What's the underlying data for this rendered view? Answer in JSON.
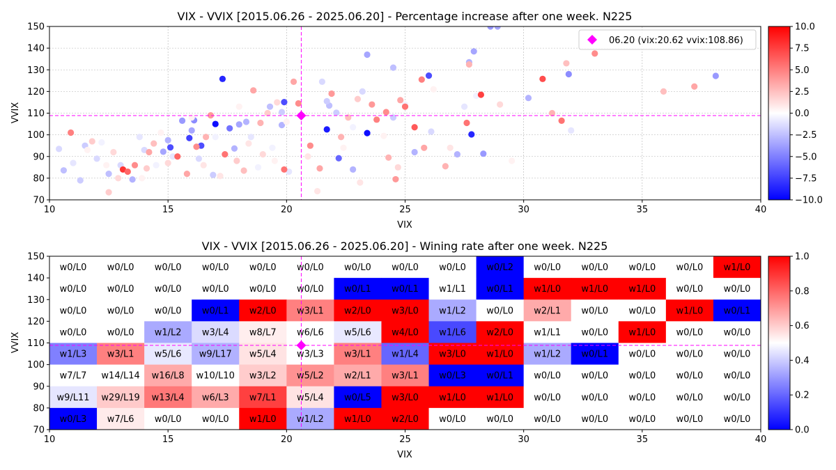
{
  "chart_data": [
    {
      "type": "scatter",
      "title": "VIX - VVIX [2015.06.26 - 2025.06.20]  - Percentage increase after one week. N225",
      "xlabel": "VIX",
      "ylabel": "VVIX",
      "xlim": [
        10,
        40
      ],
      "ylim": [
        70,
        150
      ],
      "x_ticks": [
        "10",
        "15",
        "20",
        "25",
        "30",
        "35",
        "40"
      ],
      "y_ticks": [
        "70",
        "80",
        "90",
        "100",
        "110",
        "120",
        "130",
        "140",
        "150"
      ],
      "grid": true,
      "legend": {
        "placement": "top-right",
        "label": "06.20 (vix:20.62 vvix:108.86)"
      },
      "marker": {
        "vix": 20.62,
        "vvix": 108.86,
        "color": "#ff00ff"
      },
      "colorbar": {
        "min": -10,
        "max": 10,
        "ticks": [
          "10.0",
          "7.5",
          "5.0",
          "2.5",
          "0.0",
          "−2.5",
          "−5.0",
          "−7.5",
          "−10.0"
        ],
        "colormap": "bwr"
      },
      "points": [
        [
          17.3,
          125.8,
          -8.5
        ],
        [
          23.4,
          100.8,
          -9.5
        ],
        [
          21.7,
          102.5,
          -9.0
        ],
        [
          17.0,
          105.0,
          -9.5
        ],
        [
          26.0,
          127.3,
          -7.0
        ],
        [
          27.8,
          100.2,
          -8.5
        ],
        [
          15.9,
          98.5,
          -7.5
        ],
        [
          16.4,
          95.0,
          -7.0
        ],
        [
          19.9,
          115.1,
          -7.0
        ],
        [
          15.1,
          94.2,
          -7.0
        ],
        [
          22.2,
          89.2,
          -6.0
        ],
        [
          17.6,
          103.0,
          -5.5
        ],
        [
          31.9,
          128.0,
          -4.5
        ],
        [
          38.1,
          127.2,
          -4.0
        ],
        [
          23.4,
          137.0,
          -3.5
        ],
        [
          28.9,
          150.0,
          -3.5
        ],
        [
          28.6,
          150.0,
          -4.0
        ],
        [
          28.3,
          91.3,
          -4.0
        ],
        [
          27.9,
          138.5,
          -3.5
        ],
        [
          27.7,
          133.5,
          -3.0
        ],
        [
          25.4,
          92.0,
          -3.0
        ],
        [
          15.6,
          106.5,
          -4.0
        ],
        [
          16.1,
          106.7,
          -4.5
        ],
        [
          19.8,
          104.5,
          -3.0
        ],
        [
          18.0,
          104.8,
          -3.5
        ],
        [
          18.3,
          106.0,
          -3.0
        ],
        [
          14.8,
          92.2,
          -3.5
        ],
        [
          15.0,
          97.5,
          -3.0
        ],
        [
          16.0,
          102.0,
          -3.5
        ],
        [
          17.8,
          93.7,
          -3.0
        ],
        [
          13.5,
          79.4,
          -3.0
        ],
        [
          12.5,
          82.0,
          -2.5
        ],
        [
          10.6,
          83.6,
          -2.5
        ],
        [
          30.2,
          117.0,
          -3.0
        ],
        [
          24.5,
          131.0,
          -2.5
        ],
        [
          27.2,
          91.0,
          -3.0
        ],
        [
          22.8,
          84.0,
          -3.0
        ],
        [
          19.3,
          113.0,
          -2.5
        ],
        [
          21.8,
          113.5,
          -2.5
        ],
        [
          22.1,
          110.2,
          -2.0
        ],
        [
          24.5,
          108.0,
          -2.0
        ],
        [
          21.7,
          115.5,
          -2.0
        ],
        [
          19.8,
          110.5,
          -2.0
        ],
        [
          16.9,
          81.5,
          -2.0
        ],
        [
          11.3,
          79.0,
          -2.0
        ],
        [
          11.5,
          95.0,
          -2.0
        ],
        [
          12.0,
          89.0,
          -1.5
        ],
        [
          13.0,
          86.0,
          -1.5
        ],
        [
          14.0,
          93.0,
          -1.5
        ],
        [
          16.3,
          89.0,
          -1.5
        ],
        [
          10.4,
          93.5,
          -1.5
        ],
        [
          11.0,
          87.0,
          -1.0
        ],
        [
          13.8,
          99.0,
          -1.0
        ],
        [
          15.2,
          90.0,
          -1.0
        ],
        [
          18.5,
          99.0,
          -1.0
        ],
        [
          20.1,
          83.0,
          -1.0
        ],
        [
          21.5,
          124.5,
          -1.5
        ],
        [
          23.2,
          120.0,
          -1.5
        ],
        [
          26.1,
          101.5,
          -1.5
        ],
        [
          27.5,
          113.0,
          -1.0
        ],
        [
          32.0,
          102.0,
          -1.0
        ],
        [
          28.0,
          118.0,
          -0.5
        ],
        [
          25.0,
          114.0,
          -0.5
        ],
        [
          12.2,
          96.5,
          -0.5
        ],
        [
          14.5,
          86.0,
          -0.5
        ],
        [
          17.0,
          99.0,
          -0.5
        ],
        [
          18.8,
          85.0,
          -0.5
        ],
        [
          19.4,
          94.0,
          -0.5
        ],
        [
          22.8,
          103.5,
          -0.5
        ],
        [
          29.5,
          88.0,
          0.5
        ],
        [
          10.9,
          101.0,
          5.0
        ],
        [
          11.8,
          97.0,
          2.0
        ],
        [
          12.7,
          92.0,
          1.5
        ],
        [
          13.1,
          84.0,
          8.0
        ],
        [
          13.3,
          83.0,
          6.0
        ],
        [
          13.6,
          86.0,
          4.5
        ],
        [
          14.2,
          92.0,
          3.5
        ],
        [
          14.4,
          96.0,
          2.5
        ],
        [
          15.4,
          90.0,
          6.0
        ],
        [
          15.8,
          82.0,
          3.5
        ],
        [
          16.2,
          94.5,
          4.5
        ],
        [
          16.6,
          99.0,
          3.0
        ],
        [
          16.8,
          109.0,
          4.0
        ],
        [
          17.4,
          91.0,
          5.5
        ],
        [
          17.9,
          88.0,
          2.0
        ],
        [
          18.2,
          83.5,
          2.5
        ],
        [
          18.6,
          120.5,
          3.5
        ],
        [
          18.9,
          105.5,
          3.0
        ],
        [
          19.2,
          110.0,
          2.0
        ],
        [
          19.6,
          115.0,
          1.5
        ],
        [
          19.9,
          84.0,
          5.5
        ],
        [
          20.3,
          124.5,
          3.5
        ],
        [
          20.5,
          114.5,
          4.5
        ],
        [
          21.0,
          95.0,
          4.5
        ],
        [
          21.4,
          84.5,
          3.5
        ],
        [
          21.9,
          119.0,
          4.0
        ],
        [
          22.3,
          99.0,
          3.0
        ],
        [
          22.6,
          108.0,
          2.5
        ],
        [
          23.0,
          116.5,
          2.0
        ],
        [
          23.6,
          114.0,
          4.0
        ],
        [
          23.8,
          107.0,
          5.0
        ],
        [
          24.2,
          110.5,
          4.5
        ],
        [
          24.3,
          89.5,
          3.0
        ],
        [
          24.6,
          79.5,
          4.0
        ],
        [
          24.8,
          116.0,
          3.5
        ],
        [
          25.0,
          113.0,
          5.5
        ],
        [
          25.4,
          103.5,
          6.5
        ],
        [
          25.7,
          125.5,
          5.0
        ],
        [
          25.8,
          94.0,
          3.5
        ],
        [
          26.7,
          85.5,
          3.0
        ],
        [
          27.6,
          105.5,
          5.5
        ],
        [
          28.2,
          118.5,
          7.5
        ],
        [
          30.8,
          125.8,
          7.0
        ],
        [
          31.2,
          110.0,
          3.0
        ],
        [
          31.6,
          106.5,
          5.5
        ],
        [
          33.0,
          137.5,
          4.5
        ],
        [
          37.2,
          122.3,
          3.5
        ],
        [
          35.9,
          120.0,
          2.5
        ],
        [
          31.8,
          133.0,
          2.5
        ],
        [
          27.7,
          132.5,
          3.0
        ],
        [
          12.5,
          73.5,
          2.0
        ],
        [
          12.9,
          80.0,
          1.5
        ],
        [
          14.1,
          84.5,
          2.0
        ],
        [
          15.0,
          87.0,
          1.5
        ],
        [
          16.5,
          86.0,
          1.0
        ],
        [
          17.2,
          81.0,
          1.0
        ],
        [
          18.4,
          96.0,
          1.0
        ],
        [
          19.0,
          91.0,
          1.5
        ],
        [
          20.9,
          90.0,
          1.0
        ],
        [
          21.3,
          74.0,
          1.0
        ],
        [
          23.1,
          78.0,
          1.0
        ],
        [
          24.7,
          85.0,
          1.5
        ],
        [
          26.9,
          94.0,
          1.0
        ],
        [
          29.0,
          114.0,
          1.5
        ],
        [
          11.6,
          93.0,
          0.5
        ],
        [
          12.4,
          86.0,
          0.5
        ],
        [
          14.7,
          101.0,
          0.5
        ],
        [
          16.0,
          108.0,
          0.5
        ],
        [
          18.0,
          113.0,
          0.5
        ],
        [
          20.0,
          106.0,
          0.5
        ],
        [
          22.4,
          94.0,
          0.5
        ],
        [
          24.1,
          99.5,
          0.5
        ],
        [
          26.2,
          121.0,
          0.5
        ],
        [
          13.9,
          80.0,
          0.5
        ],
        [
          19.5,
          88.0,
          0.5
        ]
      ]
    },
    {
      "type": "heatmap",
      "title": "VIX - VVIX [2015.06.26 - 2025.06.20]  - Wining rate after one week. N225",
      "xlabel": "VIX",
      "ylabel": "VVIX",
      "xlim": [
        10,
        40
      ],
      "ylim": [
        70,
        150
      ],
      "x_ticks": [
        "10",
        "15",
        "20",
        "25",
        "30",
        "35",
        "40"
      ],
      "y_ticks": [
        "70",
        "80",
        "90",
        "100",
        "110",
        "120",
        "130",
        "140",
        "150"
      ],
      "x_bins": [
        10,
        12,
        14,
        16,
        18,
        20,
        22,
        24,
        26,
        28,
        30,
        32,
        34,
        36,
        38,
        40
      ],
      "y_bins": [
        70,
        80,
        90,
        100,
        110,
        120,
        130,
        140,
        150
      ],
      "marker": {
        "vix": 20.62,
        "vvix": 108.86,
        "color": "#ff00ff"
      },
      "colorbar": {
        "min": 0,
        "max": 1,
        "ticks": [
          "1.0",
          "0.8",
          "0.6",
          "0.4",
          "0.2",
          "0.0"
        ],
        "colormap": "bwr"
      },
      "rows_top_to_bottom": [
        [
          "w0/L0",
          "w0/L0",
          "w0/L0",
          "w0/L0",
          "w0/L0",
          "w0/L0",
          "w0/L0",
          "w0/L0",
          "w0/L0",
          "w0/L2",
          "w0/L0",
          "w0/L0",
          "w0/L0",
          "w0/L0",
          "w1/L0"
        ],
        [
          "w0/L0",
          "w0/L0",
          "w0/L0",
          "w0/L0",
          "w0/L0",
          "w0/L0",
          "w0/L1",
          "w0/L1",
          "w1/L1",
          "w0/L1",
          "w1/L0",
          "w1/L0",
          "w1/L0",
          "w0/L0",
          "w0/L0"
        ],
        [
          "w0/L0",
          "w0/L0",
          "w0/L0",
          "w0/L1",
          "w2/L0",
          "w3/L1",
          "w2/L0",
          "w3/L0",
          "w1/L2",
          "w0/L0",
          "w2/L1",
          "w0/L0",
          "w0/L0",
          "w1/L0",
          "w0/L1"
        ],
        [
          "w0/L0",
          "w0/L0",
          "w1/L2",
          "w3/L4",
          "w8/L7",
          "w6/L6",
          "w5/L6",
          "w4/L0",
          "w1/L6",
          "w2/L0",
          "w1/L1",
          "w0/L0",
          "w1/L0",
          "w0/L0",
          "w0/L0"
        ],
        [
          "w1/L3",
          "w3/L1",
          "w5/L6",
          "w9/L17",
          "w5/L4",
          "w3/L3",
          "w3/L1",
          "w1/L4",
          "w3/L0",
          "w1/L0",
          "w1/L2",
          "w0/L1",
          "w0/L0",
          "w0/L0",
          "w0/L0"
        ],
        [
          "w7/L7",
          "w14/L14",
          "w16/L8",
          "w10/L10",
          "w3/L2",
          "w5/L2",
          "w2/L1",
          "w3/L1",
          "w0/L3",
          "w0/L1",
          "w0/L0",
          "w0/L0",
          "w0/L0",
          "w0/L0",
          "w0/L0"
        ],
        [
          "w9/L11",
          "w29/L19",
          "w13/L4",
          "w6/L3",
          "w7/L1",
          "w5/L4",
          "w0/L5",
          "w3/L0",
          "w1/L0",
          "w1/L0",
          "w0/L0",
          "w0/L0",
          "w0/L0",
          "w0/L0",
          "w0/L0"
        ],
        [
          "w0/L3",
          "w7/L6",
          "w0/L0",
          "w0/L0",
          "w1/L0",
          "w1/L2",
          "w1/L0",
          "w2/L0",
          "w0/L0",
          "w0/L0",
          "w0/L0",
          "w0/L0",
          "w0/L0",
          "w0/L0",
          "w0/L0"
        ]
      ]
    }
  ]
}
